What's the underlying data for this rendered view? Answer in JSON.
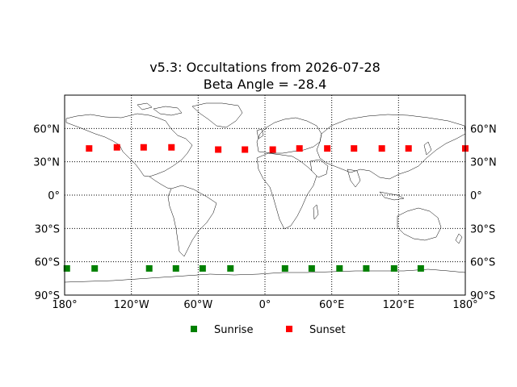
{
  "chart_data": {
    "type": "scatter",
    "title": "v5.3: Occultations from 2026-07-28",
    "subtitle": "Beta Angle = -28.4",
    "xlabel": "",
    "ylabel": "",
    "xlim": [
      -180,
      180
    ],
    "ylim": [
      -90,
      90
    ],
    "x_ticks": [
      -180,
      -120,
      -60,
      0,
      60,
      120,
      180
    ],
    "x_tick_labels": [
      "180°",
      "120°W",
      "60°W",
      "0°",
      "60°E",
      "120°E",
      "180°"
    ],
    "y_ticks": [
      -90,
      -60,
      -30,
      0,
      30,
      60
    ],
    "y_tick_labels": [
      "90°S",
      "60°S",
      "30°S",
      "0°",
      "30°N",
      "60°N"
    ],
    "grid": true,
    "grid_style": "dotted",
    "legend_position": "bottom-center",
    "background": "world coastline map",
    "series": [
      {
        "name": "Sunrise",
        "color": "#008000",
        "marker": "square",
        "x": [
          -178,
          -153,
          -104,
          -80,
          -56,
          -31,
          18,
          42,
          67,
          91,
          116,
          140
        ],
        "y": [
          -66,
          -66,
          -66,
          -66,
          -66,
          -66,
          -66,
          -66,
          -66,
          -66,
          -66,
          -66
        ]
      },
      {
        "name": "Sunset",
        "color": "#ff0000",
        "marker": "square",
        "x": [
          -158,
          -133,
          -109,
          -84,
          -42,
          -18,
          7,
          31,
          56,
          80,
          105,
          129,
          180
        ],
        "y": [
          42,
          43,
          43,
          43,
          41,
          41,
          41,
          42,
          42,
          42,
          42,
          42,
          42
        ]
      }
    ]
  }
}
